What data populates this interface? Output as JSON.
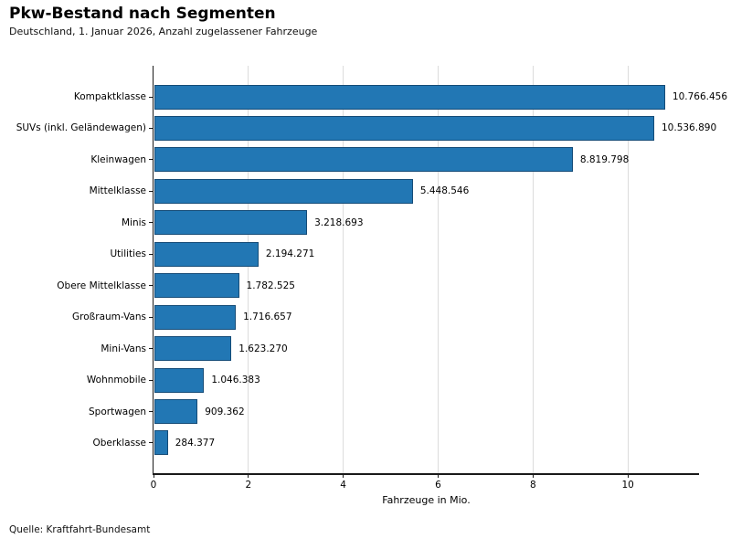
{
  "chart_data": {
    "type": "bar",
    "orientation": "horizontal",
    "title": "Pkw-Bestand nach Segmenten",
    "subtitle": "Deutschland, 1. Januar 2026, Anzahl zugelassener Fahrzeuge",
    "xlabel": "Fahrzeuge in Mio.",
    "source": "Quelle: Kraftfahrt-Bundesamt",
    "categories": [
      "Kompaktklasse",
      "SUVs (inkl. Geländewagen)",
      "Kleinwagen",
      "Mittelklasse",
      "Minis",
      "Utilities",
      "Obere Mittelklasse",
      "Großraum-Vans",
      "Mini-Vans",
      "Wohnmobile",
      "Sportwagen",
      "Oberklasse"
    ],
    "values": [
      10766456,
      10536890,
      8819798,
      5448546,
      3218693,
      2194271,
      1782525,
      1716657,
      1623270,
      1046383,
      909362,
      284377
    ],
    "value_labels": [
      "10.766.456",
      "10.536.890",
      "8.819.798",
      "5.448.546",
      "3.218.693",
      "2.194.271",
      "1.782.525",
      "1.716.657",
      "1.623.270",
      "1.046.383",
      "909.362",
      "284.377"
    ],
    "xlim": [
      0,
      11.5
    ],
    "xticks": [
      0,
      2,
      4,
      6,
      8,
      10
    ],
    "unit_divisor": 1000000,
    "grid": true,
    "legend": "none",
    "bar_color": "#2277b4",
    "bar_edge_color": "#0a2846",
    "grid_color": "#dcdcdc",
    "axis_color": "#1a1a1a"
  }
}
